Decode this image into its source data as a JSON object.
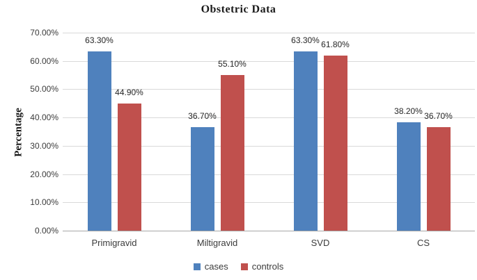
{
  "chart_data": {
    "type": "bar",
    "title": "Obstetric Data",
    "xlabel": "",
    "ylabel": "Percentage",
    "categories": [
      "Primigravid",
      "Miltigravid",
      "SVD",
      "CS"
    ],
    "series": [
      {
        "name": "cases",
        "color": "#4F81BD",
        "values": [
          63.3,
          36.7,
          63.3,
          38.2
        ],
        "data_labels": [
          "63.30%",
          "36.70%",
          "63.30%",
          "38.20%"
        ]
      },
      {
        "name": "controls",
        "color": "#C0504D",
        "values": [
          44.9,
          55.1,
          61.8,
          36.7
        ],
        "data_labels": [
          "44.90%",
          "55.10%",
          "61.80%",
          "36.70%"
        ]
      }
    ],
    "y_axis": {
      "min": 0,
      "max": 70,
      "step": 10,
      "tick_labels": [
        "0.00%",
        "10.00%",
        "20.00%",
        "30.00%",
        "40.00%",
        "50.00%",
        "60.00%",
        "70.00%"
      ]
    },
    "grid": true,
    "legend_position": "bottom",
    "legend": [
      "cases",
      "controls"
    ]
  },
  "colors": {
    "cases": "#4F81BD",
    "controls": "#C0504D",
    "gridline": "#D9D9D9",
    "axis_line": "#A6A6A6"
  }
}
